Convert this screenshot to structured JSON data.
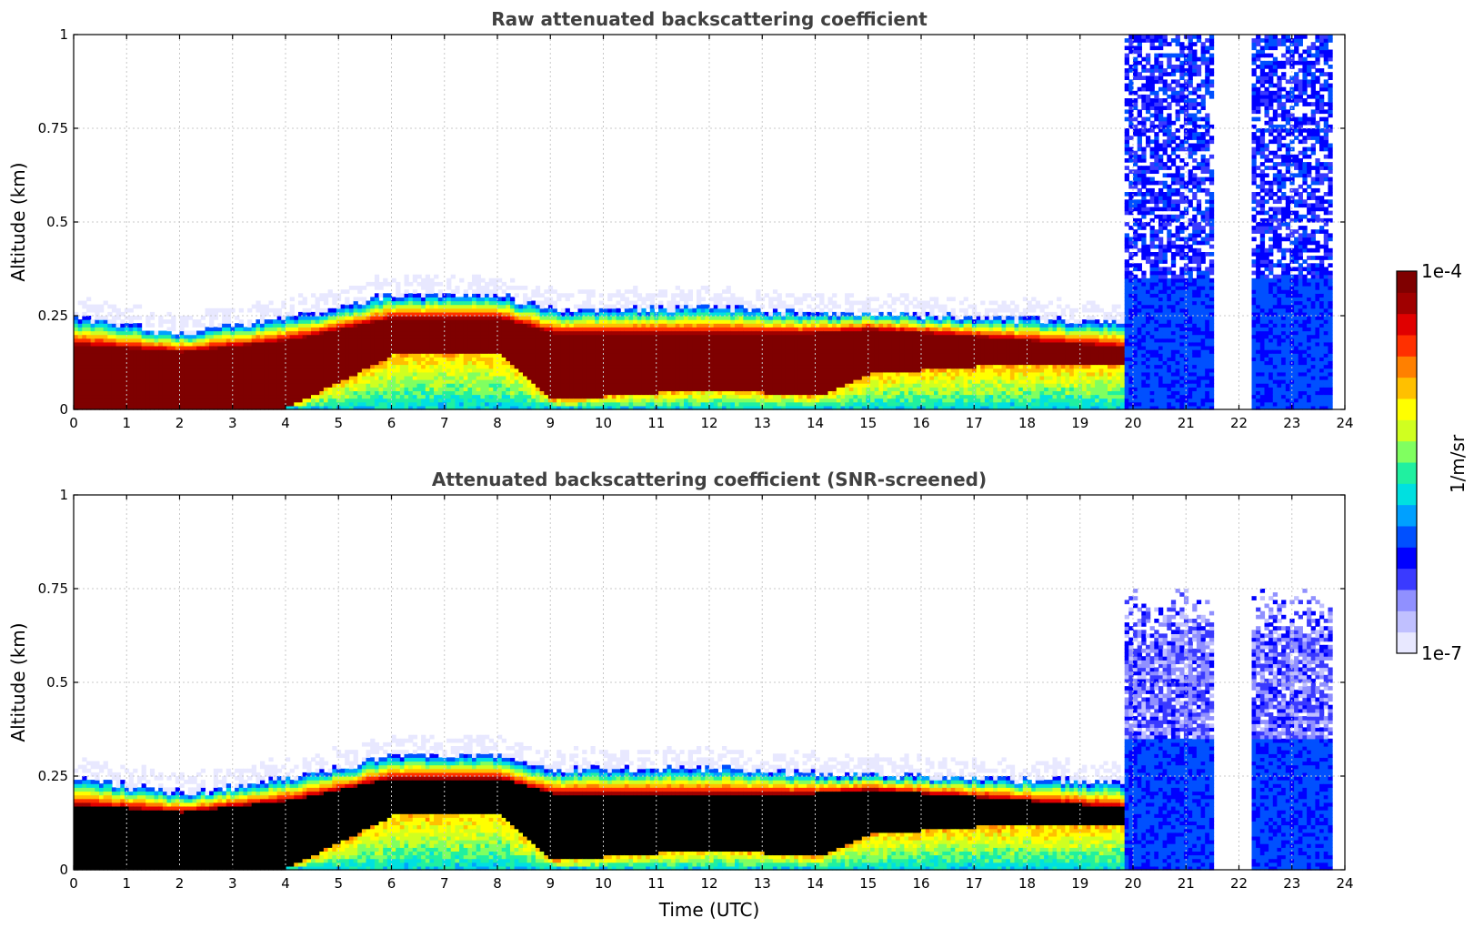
{
  "chart_data": [
    {
      "type": "heatmap",
      "title": "Raw attenuated backscattering coefficient",
      "xlabel": "",
      "ylabel": "Altitude (km)",
      "xlim": [
        0,
        24
      ],
      "ylim": [
        0,
        1
      ],
      "xticks": [
        "0",
        "1",
        "2",
        "3",
        "4",
        "5",
        "6",
        "7",
        "8",
        "9",
        "10",
        "11",
        "12",
        "13",
        "14",
        "15",
        "16",
        "17",
        "18",
        "19",
        "20",
        "21",
        "22",
        "23",
        "24"
      ],
      "yticks": [
        "0",
        "0.25",
        "0.5",
        "0.75",
        "1"
      ],
      "grid": true,
      "screened": false,
      "layer": {
        "time_utc": [
          0,
          2,
          4,
          6,
          8,
          9,
          12,
          14,
          15,
          17,
          19,
          19.8
        ],
        "top_km": [
          0.24,
          0.2,
          0.24,
          0.3,
          0.3,
          0.26,
          0.27,
          0.25,
          0.25,
          0.24,
          0.23,
          0.23
        ],
        "core_top_km": [
          0.17,
          0.15,
          0.18,
          0.24,
          0.24,
          0.2,
          0.2,
          0.2,
          0.21,
          0.19,
          0.17,
          0.16
        ],
        "core_bottom_km": [
          0.0,
          0.0,
          0.0,
          0.14,
          0.15,
          0.02,
          0.05,
          0.03,
          0.09,
          0.11,
          0.11,
          0.12
        ]
      },
      "night_noise_windows_utc": [
        [
          19.8,
          21.5
        ],
        [
          22.2,
          23.7
        ]
      ],
      "data_end_utc": 23.7
    },
    {
      "type": "heatmap",
      "title": "Attenuated backscattering coefficient (SNR-screened)",
      "xlabel": "Time (UTC)",
      "ylabel": "Altitude (km)",
      "xlim": [
        0,
        24
      ],
      "ylim": [
        0,
        1
      ],
      "xticks": [
        "0",
        "1",
        "2",
        "3",
        "4",
        "5",
        "6",
        "7",
        "8",
        "9",
        "10",
        "11",
        "12",
        "13",
        "14",
        "15",
        "16",
        "17",
        "18",
        "19",
        "20",
        "21",
        "22",
        "23",
        "24"
      ],
      "yticks": [
        "0",
        "0.25",
        "0.5",
        "0.75",
        "1"
      ],
      "grid": true,
      "screened": true,
      "layer": {
        "time_utc": [
          0,
          2,
          4,
          6,
          8,
          9,
          12,
          14,
          15,
          17,
          19,
          19.8
        ],
        "top_km": [
          0.24,
          0.2,
          0.24,
          0.3,
          0.3,
          0.26,
          0.27,
          0.25,
          0.25,
          0.24,
          0.23,
          0.23
        ],
        "core_top_km": [
          0.17,
          0.15,
          0.18,
          0.24,
          0.24,
          0.2,
          0.2,
          0.2,
          0.21,
          0.19,
          0.17,
          0.16
        ],
        "core_bottom_km": [
          0.0,
          0.0,
          0.0,
          0.14,
          0.15,
          0.02,
          0.05,
          0.03,
          0.09,
          0.11,
          0.11,
          0.12
        ]
      },
      "night_noise_windows_utc": [
        [
          19.8,
          21.5
        ],
        [
          22.2,
          23.7
        ]
      ],
      "data_end_utc": 23.7
    }
  ],
  "colorbar": {
    "label": "1/m/sr",
    "max_label": "1e-4",
    "min_label": "1e-7",
    "colors": [
      "#e8e8ff",
      "#c0c0ff",
      "#9090ff",
      "#3a3aff",
      "#0000ff",
      "#0050ff",
      "#00a0ff",
      "#00e0e0",
      "#20f0a0",
      "#80ff60",
      "#d0ff20",
      "#ffff00",
      "#ffc000",
      "#ff8000",
      "#ff3000",
      "#e00000",
      "#a00000",
      "#7f0000"
    ]
  }
}
